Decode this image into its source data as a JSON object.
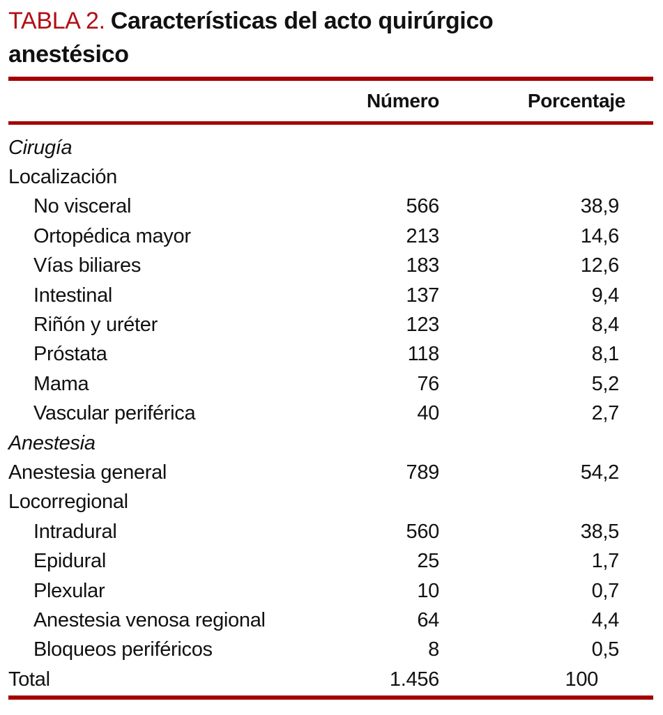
{
  "title": {
    "label": "TABLA 2.",
    "text": "Características del acto quirúrgico anestésico"
  },
  "colors": {
    "accent_text": "#b00f15",
    "accent_rule": "#a40000",
    "ink": "#111111"
  },
  "table": {
    "columns": [
      "Número",
      "Porcentaje"
    ],
    "rows": [
      {
        "label": "Cirugía",
        "style": "section",
        "numero": "",
        "porcentaje": ""
      },
      {
        "label": "Localización",
        "style": "group",
        "numero": "",
        "porcentaje": ""
      },
      {
        "label": "No visceral",
        "style": "indent",
        "numero": "566",
        "porcentaje": "38,9"
      },
      {
        "label": "Ortopédica mayor",
        "style": "indent",
        "numero": "213",
        "porcentaje": "14,6"
      },
      {
        "label": "Vías biliares",
        "style": "indent",
        "numero": "183",
        "porcentaje": "12,6"
      },
      {
        "label": "Intestinal",
        "style": "indent",
        "numero": "137",
        "porcentaje": "9,4"
      },
      {
        "label": "Riñón y uréter",
        "style": "indent",
        "numero": "123",
        "porcentaje": "8,4"
      },
      {
        "label": "Próstata",
        "style": "indent",
        "numero": "118",
        "porcentaje": "8,1"
      },
      {
        "label": "Mama",
        "style": "indent",
        "numero": "76",
        "porcentaje": "5,2"
      },
      {
        "label": "Vascular periférica",
        "style": "indent",
        "numero": "40",
        "porcentaje": "2,7"
      },
      {
        "label": "Anestesia",
        "style": "section",
        "numero": "",
        "porcentaje": ""
      },
      {
        "label": "Anestesia general",
        "style": "group",
        "numero": "789",
        "porcentaje": "54,2"
      },
      {
        "label": "Locorregional",
        "style": "group",
        "numero": "",
        "porcentaje": ""
      },
      {
        "label": "Intradural",
        "style": "indent",
        "numero": "560",
        "porcentaje": "38,5"
      },
      {
        "label": "Epidural",
        "style": "indent",
        "numero": "25",
        "porcentaje": "1,7"
      },
      {
        "label": "Plexular",
        "style": "indent",
        "numero": "10",
        "porcentaje": "0,7"
      },
      {
        "label": "Anestesia venosa regional",
        "style": "indent",
        "numero": "64",
        "porcentaje": "4,4"
      },
      {
        "label": "Bloqueos periféricos",
        "style": "indent",
        "numero": "8",
        "porcentaje": "0,5"
      },
      {
        "label": "Total",
        "style": "group",
        "numero": "1.456",
        "porcentaje": "100",
        "whole_number": true
      }
    ]
  }
}
